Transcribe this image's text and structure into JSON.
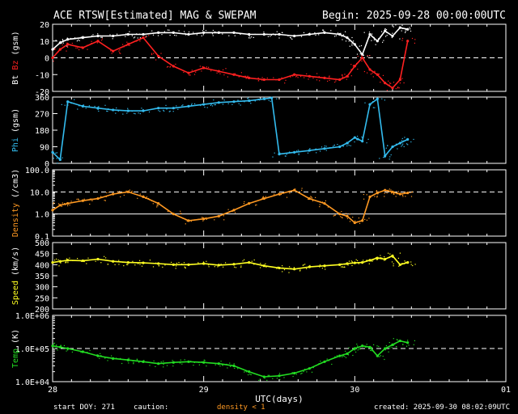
{
  "header": {
    "title": "ACE RTSW[Estimated] MAG & SWEPAM",
    "begin": "Begin: 2025-09-28 00:00:00UTC"
  },
  "footer": {
    "start_doy": "start DOY: 271",
    "caution": "caution:",
    "density_note": "density < 1",
    "created": "created: 2025-09-30 08:02:09UTC"
  },
  "colors": {
    "bg": "#000000",
    "axis": "#ffffff",
    "bt": "#ffffff",
    "bz": "#ff2020",
    "phi": "#33bbee",
    "density": "#ff9922",
    "speed": "#ffff22",
    "temp": "#22dd22"
  },
  "chart_data": {
    "type": "scatter",
    "xaxis": {
      "label": "UTC(days)",
      "range": [
        28,
        31
      ],
      "ticks": [
        "28",
        "29",
        "30",
        "01"
      ]
    },
    "panels": [
      {
        "id": "mag",
        "ylabel_parts": [
          "Bt",
          "Bz",
          "(gsm)"
        ],
        "ylim": [
          -20,
          20
        ],
        "ticks": [
          "20",
          "10",
          "0",
          "-10",
          "-20"
        ],
        "tick_values": [
          20,
          10,
          0,
          -10,
          -20
        ],
        "dashed_at": [
          0
        ],
        "log": false,
        "series": [
          {
            "name": "Bt",
            "x": [
              28.0,
              28.05,
              28.1,
              28.2,
              28.3,
              28.4,
              28.5,
              28.6,
              28.7,
              28.8,
              28.9,
              29.0,
              29.1,
              29.2,
              29.3,
              29.4,
              29.5,
              29.6,
              29.7,
              29.8,
              29.9,
              29.95,
              30.0,
              30.05,
              30.1,
              30.15,
              30.2,
              30.25,
              30.3,
              30.35
            ],
            "values": [
              5,
              9,
              11,
              12,
              13,
              13,
              14,
              14,
              15,
              15,
              14,
              15,
              15,
              15,
              14,
              14,
              14,
              13,
              14,
              15,
              14,
              12,
              8,
              2,
              14,
              10,
              16,
              13,
              18,
              17
            ]
          },
          {
            "name": "Bz",
            "x": [
              28.0,
              28.05,
              28.1,
              28.2,
              28.3,
              28.4,
              28.5,
              28.6,
              28.7,
              28.8,
              28.9,
              29.0,
              29.1,
              29.2,
              29.3,
              29.4,
              29.5,
              29.6,
              29.7,
              29.8,
              29.9,
              29.95,
              30.0,
              30.05,
              30.1,
              30.15,
              30.2,
              30.25,
              30.3,
              30.35
            ],
            "values": [
              0,
              5,
              8,
              6,
              10,
              4,
              8,
              12,
              1,
              -5,
              -9,
              -6,
              -8,
              -10,
              -12,
              -13,
              -13,
              -10,
              -11,
              -12,
              -13,
              -11,
              -5,
              0,
              -7,
              -10,
              -15,
              -18,
              -13,
              10
            ]
          }
        ]
      },
      {
        "id": "phi",
        "ylabel_parts": [
          "Phi",
          "(gsm)"
        ],
        "ylim": [
          0,
          360
        ],
        "ticks": [
          "360",
          "270",
          "180",
          "90",
          "0"
        ],
        "tick_values": [
          360,
          270,
          180,
          90,
          0
        ],
        "dashed_at": [],
        "log": false,
        "series": [
          {
            "name": "Phi",
            "x": [
              28.0,
              28.05,
              28.1,
              28.2,
              28.3,
              28.4,
              28.5,
              28.6,
              28.7,
              28.8,
              28.9,
              29.0,
              29.1,
              29.2,
              29.3,
              29.4,
              29.45,
              29.5,
              29.6,
              29.7,
              29.8,
              29.9,
              29.95,
              30.0,
              30.05,
              30.1,
              30.15,
              30.2,
              30.25,
              30.3,
              30.35
            ],
            "values": [
              60,
              20,
              335,
              310,
              300,
              290,
              285,
              285,
              300,
              300,
              310,
              320,
              330,
              335,
              340,
              350,
              355,
              50,
              60,
              70,
              80,
              90,
              110,
              140,
              120,
              320,
              350,
              40,
              90,
              110,
              130
            ]
          }
        ]
      },
      {
        "id": "density",
        "ylabel_parts": [
          "Density",
          "(/cm3)"
        ],
        "ylim": [
          0.1,
          100
        ],
        "ticks": [
          "100.0",
          "10.0",
          "1.0",
          "0.1"
        ],
        "tick_values": [
          100,
          10,
          1,
          0.1
        ],
        "dashed_at": [
          10
        ],
        "solid_at": [
          1
        ],
        "log": true,
        "series": [
          {
            "name": "Density",
            "x": [
              28.0,
              28.05,
              28.1,
              28.2,
              28.3,
              28.4,
              28.5,
              28.6,
              28.7,
              28.8,
              28.9,
              29.0,
              29.1,
              29.2,
              29.3,
              29.4,
              29.5,
              29.6,
              29.7,
              29.8,
              29.9,
              29.95,
              30.0,
              30.05,
              30.1,
              30.15,
              30.2,
              30.25,
              30.3,
              30.35
            ],
            "values": [
              1.5,
              2.5,
              3,
              4,
              5,
              8,
              10,
              6,
              3,
              1,
              0.5,
              0.6,
              0.8,
              1.5,
              3,
              5,
              8,
              12,
              5,
              3,
              1,
              0.8,
              0.4,
              0.5,
              6,
              9,
              12,
              10,
              8,
              9
            ]
          }
        ]
      },
      {
        "id": "speed",
        "ylabel_parts": [
          "Speed",
          "(km/s)"
        ],
        "ylim": [
          200,
          500
        ],
        "ticks": [
          "500",
          "450",
          "400",
          "350",
          "300",
          "250",
          "200"
        ],
        "tick_values": [
          500,
          450,
          400,
          350,
          300,
          250,
          200
        ],
        "dashed_at": [],
        "log": false,
        "series": [
          {
            "name": "Speed",
            "x": [
              28.0,
              28.05,
              28.1,
              28.2,
              28.3,
              28.4,
              28.5,
              28.6,
              28.7,
              28.8,
              28.9,
              29.0,
              29.1,
              29.2,
              29.3,
              29.4,
              29.5,
              29.6,
              29.7,
              29.8,
              29.9,
              29.95,
              30.0,
              30.05,
              30.1,
              30.15,
              30.2,
              30.25,
              30.3,
              30.35
            ],
            "values": [
              410,
              415,
              420,
              418,
              425,
              415,
              410,
              408,
              405,
              400,
              400,
              405,
              398,
              402,
              410,
              395,
              385,
              380,
              390,
              395,
              400,
              405,
              408,
              410,
              420,
              430,
              425,
              440,
              400,
              410
            ]
          }
        ]
      },
      {
        "id": "temp",
        "ylabel_parts": [
          "Temp",
          "(K)"
        ],
        "ylim": [
          10000,
          1000000
        ],
        "ticks": [
          "1.0E+06",
          "1.0E+05",
          "1.0E+04"
        ],
        "tick_values": [
          1000000,
          100000,
          10000
        ],
        "dashed_at": [
          100000
        ],
        "log": true,
        "series": [
          {
            "name": "Temp",
            "x": [
              28.0,
              28.05,
              28.1,
              28.2,
              28.3,
              28.4,
              28.5,
              28.6,
              28.7,
              28.8,
              28.9,
              29.0,
              29.1,
              29.2,
              29.3,
              29.4,
              29.5,
              29.6,
              29.7,
              29.8,
              29.9,
              29.95,
              30.0,
              30.05,
              30.1,
              30.15,
              30.2,
              30.25,
              30.3,
              30.35
            ],
            "values": [
              120000,
              110000,
              100000,
              80000,
              60000,
              50000,
              45000,
              40000,
              35000,
              38000,
              40000,
              38000,
              35000,
              30000,
              20000,
              14000,
              15000,
              18000,
              25000,
              40000,
              60000,
              70000,
              100000,
              120000,
              110000,
              60000,
              100000,
              130000,
              170000,
              150000
            ]
          }
        ]
      }
    ]
  }
}
